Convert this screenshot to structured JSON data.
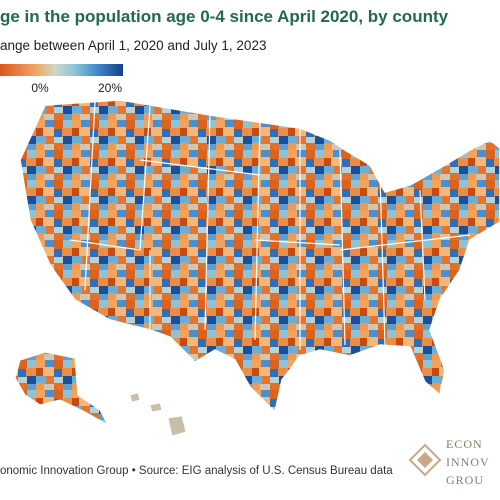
{
  "header": {
    "title": "ge in the population age 0-4 since April 2020, by county",
    "subtitle": "ange between April 1, 2020 and July 1, 2023"
  },
  "legend": {
    "labels": [
      "0%",
      "20%"
    ]
  },
  "footer": {
    "source": "onomic Innovation Group • Source: EIG analysis of U.S. Census Bureau data"
  },
  "logo": {
    "lines": [
      "ECON",
      "INNOV",
      "GROU"
    ]
  }
}
